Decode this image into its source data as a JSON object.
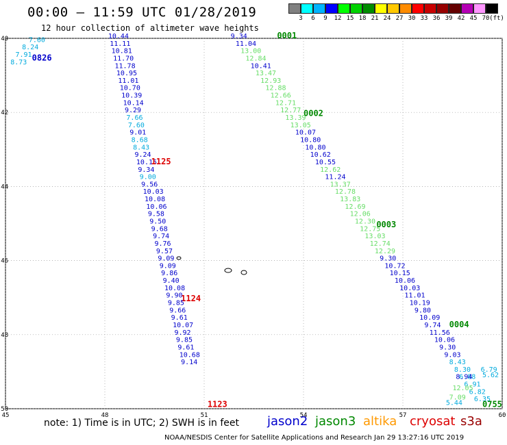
{
  "header": {
    "title": "00:00 – 11:59 UTC 01/28/2019",
    "subtitle": "12 hour collection of altimeter wave heights"
  },
  "colorbar": {
    "unit": "(ft)",
    "colors": [
      "#808080",
      "#00ffff",
      "#00b4ff",
      "#0000ff",
      "#00ff00",
      "#00d200",
      "#008c00",
      "#ffff00",
      "#ffc800",
      "#ff8c00",
      "#ff0000",
      "#c80000",
      "#960000",
      "#640000",
      "#b400b4",
      "#ff96ff",
      "#000000"
    ],
    "labels": [
      "3",
      "6",
      "9",
      "12",
      "15",
      "18",
      "21",
      "24",
      "27",
      "30",
      "33",
      "36",
      "39",
      "42",
      "45",
      "70"
    ]
  },
  "map": {
    "lon_range": [
      45,
      60
    ],
    "lat_range": [
      -50,
      -40
    ],
    "lon_ticks": [
      "45",
      "48",
      "51",
      "54",
      "57",
      "60"
    ],
    "lat_ticks": [
      "-40",
      "-42",
      "-44",
      "-46",
      "-48",
      "-50"
    ]
  },
  "passes": [
    {
      "id": "p1",
      "color": "#00aadd",
      "time": "0826",
      "time_color": "#0000cc",
      "time_pos": [
        45.8,
        -40.6
      ],
      "points": [
        [
          45.7,
          -40.1,
          "7.60",
          "#00aadd"
        ],
        [
          45.5,
          -40.3,
          "8.24",
          "#00aadd"
        ],
        [
          45.3,
          -40.5,
          "7.91",
          "#00aadd"
        ],
        [
          45.15,
          -40.7,
          "8.73",
          "#00aadd"
        ]
      ]
    },
    {
      "id": "p2",
      "time": "1125",
      "time_color": "#dd0000",
      "time_pos": [
        49.4,
        -43.4
      ],
      "points": [
        [
          48.1,
          -40.0,
          "10.44",
          "#0000cc"
        ],
        [
          48.15,
          -40.2,
          "11.11",
          "#0000cc"
        ],
        [
          48.2,
          -40.4,
          "10.81",
          "#0000cc"
        ],
        [
          48.25,
          -40.6,
          "11.70",
          "#0000cc"
        ],
        [
          48.3,
          -40.8,
          "11.78",
          "#0000cc"
        ],
        [
          48.35,
          -41.0,
          "10.95",
          "#0000cc"
        ],
        [
          48.4,
          -41.2,
          "11.01",
          "#0000cc"
        ],
        [
          48.45,
          -41.4,
          "10.70",
          "#0000cc"
        ],
        [
          48.5,
          -41.6,
          "10.39",
          "#0000cc"
        ],
        [
          48.55,
          -41.8,
          "10.14",
          "#0000cc"
        ],
        [
          48.6,
          -42.0,
          "9.29",
          "#0000cc"
        ],
        [
          48.65,
          -42.2,
          "7.66",
          "#00aadd"
        ],
        [
          48.7,
          -42.4,
          "7.60",
          "#00aadd"
        ],
        [
          48.75,
          -42.6,
          "9.01",
          "#0000cc"
        ],
        [
          48.8,
          -42.8,
          "8.68",
          "#00aadd"
        ],
        [
          48.85,
          -43.0,
          "8.43",
          "#00aadd"
        ],
        [
          48.9,
          -43.2,
          "9.24",
          "#0000cc"
        ],
        [
          48.95,
          -43.4,
          "10.15",
          "#0000cc"
        ],
        [
          49.0,
          -43.6,
          "9.34",
          "#0000cc"
        ],
        [
          49.05,
          -43.8,
          "9.00",
          "#00aadd"
        ]
      ]
    },
    {
      "id": "p3",
      "time": "1124",
      "time_color": "#dd0000",
      "time_pos": [
        50.3,
        -47.1
      ],
      "points": [
        [
          49.1,
          -44.0,
          "9.56",
          "#0000cc"
        ],
        [
          49.15,
          -44.2,
          "10.03",
          "#0000cc"
        ],
        [
          49.2,
          -44.4,
          "10.08",
          "#0000cc"
        ],
        [
          49.25,
          -44.6,
          "10.06",
          "#0000cc"
        ],
        [
          49.3,
          -44.8,
          "9.58",
          "#0000cc"
        ],
        [
          49.35,
          -45.0,
          "9.50",
          "#0000cc"
        ],
        [
          49.4,
          -45.2,
          "9.68",
          "#0000cc"
        ],
        [
          49.45,
          -45.4,
          "9.74",
          "#0000cc"
        ],
        [
          49.5,
          -45.6,
          "9.76",
          "#0000cc"
        ],
        [
          49.55,
          -45.8,
          "9.57",
          "#0000cc"
        ],
        [
          49.6,
          -46.0,
          "9.09",
          "#0000cc"
        ],
        [
          49.65,
          -46.2,
          "9.09",
          "#0000cc"
        ],
        [
          49.7,
          -46.4,
          "9.86",
          "#0000cc"
        ],
        [
          49.75,
          -46.6,
          "9.40",
          "#0000cc"
        ],
        [
          49.8,
          -46.8,
          "10.08",
          "#0000cc"
        ],
        [
          49.85,
          -47.0,
          "9.90",
          "#0000cc"
        ]
      ]
    },
    {
      "id": "p4",
      "time": "1123",
      "time_color": "#dd0000",
      "time_pos": [
        51.1,
        -49.95
      ],
      "points": [
        [
          49.9,
          -47.2,
          "9.85",
          "#0000cc"
        ],
        [
          49.95,
          -47.4,
          "9.66",
          "#0000cc"
        ],
        [
          50.0,
          -47.6,
          "9.61",
          "#0000cc"
        ],
        [
          50.05,
          -47.8,
          "10.07",
          "#0000cc"
        ],
        [
          50.1,
          -48.0,
          "9.92",
          "#0000cc"
        ],
        [
          50.15,
          -48.2,
          "9.85",
          "#0000cc"
        ],
        [
          50.2,
          -48.4,
          "9.61",
          "#0000cc"
        ],
        [
          50.25,
          -48.6,
          "10.68",
          "#0000cc"
        ],
        [
          50.3,
          -48.8,
          "9.14",
          "#0000cc"
        ]
      ]
    },
    {
      "id": "p5",
      "time": "0001",
      "time_color": "#008800",
      "time_pos": [
        53.2,
        -40.0
      ],
      "points": [
        [
          51.8,
          -40.0,
          "9.34",
          "#0000cc"
        ],
        [
          51.95,
          -40.2,
          "11.04",
          "#0000cc"
        ],
        [
          52.1,
          -40.4,
          "13.00",
          "#66dd66"
        ],
        [
          52.25,
          -40.6,
          "12.84",
          "#66dd66"
        ],
        [
          52.4,
          -40.8,
          "10.41",
          "#0000cc"
        ],
        [
          52.55,
          -41.0,
          "13.47",
          "#66dd66"
        ],
        [
          52.7,
          -41.2,
          "12.93",
          "#66dd66"
        ],
        [
          52.85,
          -41.4,
          "12.88",
          "#66dd66"
        ],
        [
          53.0,
          -41.6,
          "12.66",
          "#66dd66"
        ],
        [
          53.15,
          -41.8,
          "12.71",
          "#66dd66"
        ],
        [
          53.3,
          -42.0,
          "12.77",
          "#66dd66"
        ],
        [
          53.45,
          -42.2,
          "13.39",
          "#66dd66"
        ],
        [
          53.6,
          -42.4,
          "13.05",
          "#66dd66"
        ],
        [
          53.75,
          -42.6,
          "10.07",
          "#0000cc"
        ],
        [
          53.9,
          -42.8,
          "10.80",
          "#0000cc"
        ],
        [
          54.05,
          -43.0,
          "10.80",
          "#0000cc"
        ],
        [
          54.2,
          -43.2,
          "10.62",
          "#0000cc"
        ],
        [
          54.35,
          -43.4,
          "10.55",
          "#0000cc"
        ],
        [
          54.5,
          -43.6,
          "12.62",
          "#66dd66"
        ],
        [
          54.65,
          -43.8,
          "11.24",
          "#0000cc"
        ],
        [
          54.8,
          -44.0,
          "13.37",
          "#66dd66"
        ],
        [
          54.95,
          -44.2,
          "12.78",
          "#66dd66"
        ],
        [
          55.1,
          -44.4,
          "13.83",
          "#66dd66"
        ],
        [
          55.25,
          -44.6,
          "12.69",
          "#66dd66"
        ],
        [
          55.4,
          -44.8,
          "12.06",
          "#66dd66"
        ],
        [
          55.55,
          -45.0,
          "12.30",
          "#66dd66"
        ],
        [
          55.7,
          -45.2,
          "12.75",
          "#66dd66"
        ],
        [
          55.85,
          -45.4,
          "13.03",
          "#66dd66"
        ],
        [
          56.0,
          -45.6,
          "12.74",
          "#66dd66"
        ],
        [
          56.15,
          -45.8,
          "12.29",
          "#66dd66"
        ],
        [
          56.3,
          -46.0,
          "9.30",
          "#0000cc"
        ],
        [
          56.45,
          -46.2,
          "10.72",
          "#0000cc"
        ],
        [
          56.6,
          -46.4,
          "10.15",
          "#0000cc"
        ],
        [
          56.75,
          -46.6,
          "10.06",
          "#0000cc"
        ],
        [
          56.9,
          -46.8,
          "10.03",
          "#0000cc"
        ],
        [
          57.05,
          -47.0,
          "11.01",
          "#0000cc"
        ],
        [
          57.2,
          -47.2,
          "10.19",
          "#0000cc"
        ],
        [
          57.35,
          -47.4,
          "9.80",
          "#0000cc"
        ],
        [
          57.5,
          -47.6,
          "10.09",
          "#0000cc"
        ],
        [
          57.65,
          -47.8,
          "9.74",
          "#0000cc"
        ],
        [
          57.8,
          -48.0,
          "11.56",
          "#0000cc"
        ],
        [
          57.95,
          -48.2,
          "10.06",
          "#0000cc"
        ],
        [
          58.1,
          -48.4,
          "9.30",
          "#0000cc"
        ],
        [
          58.25,
          -48.6,
          "9.03",
          "#0000cc"
        ],
        [
          58.4,
          -48.8,
          "8.43",
          "#00aadd"
        ],
        [
          58.55,
          -49.0,
          "8.30",
          "#00aadd"
        ],
        [
          58.7,
          -49.2,
          "6.88",
          "#00aadd"
        ],
        [
          58.85,
          -49.4,
          "6.91",
          "#00aadd"
        ],
        [
          59.0,
          -49.6,
          "6.82",
          "#00aadd"
        ],
        [
          59.15,
          -49.8,
          "6.35",
          "#00aadd"
        ]
      ]
    }
  ],
  "extra_labels": [
    {
      "text": "0002",
      "pos": [
        54.0,
        -42.1
      ],
      "color": "#008800"
    },
    {
      "text": "0003",
      "pos": [
        56.2,
        -45.1
      ],
      "color": "#008800"
    },
    {
      "text": "0004",
      "pos": [
        58.4,
        -47.8
      ],
      "color": "#008800"
    },
    {
      "text": "0755",
      "pos": [
        59.4,
        -49.95
      ],
      "color": "#008800"
    },
    {
      "text": "12.05",
      "pos": [
        58.5,
        -49.5
      ],
      "color": "#66dd66"
    },
    {
      "text": "8.94",
      "pos": [
        58.6,
        -49.2
      ],
      "color": "#0000cc"
    },
    {
      "text": "7.09",
      "pos": [
        58.4,
        -49.75
      ],
      "color": "#66dd66"
    },
    {
      "text": "5.44",
      "pos": [
        58.3,
        -49.9
      ],
      "color": "#00aadd"
    },
    {
      "text": "6.79",
      "pos": [
        59.35,
        -49.0
      ],
      "color": "#00aadd"
    },
    {
      "text": "5.62",
      "pos": [
        59.4,
        -49.15
      ],
      "color": "#00aadd"
    }
  ],
  "footer": {
    "note": "note: 1) Time is in UTC; 2) SWH is in feet",
    "legend": [
      {
        "label": "jason2",
        "color": "#0000cc"
      },
      {
        "label": "jason3",
        "color": "#008800"
      },
      {
        "label": "altika",
        "color": "#ff9900"
      },
      {
        "label": "cryosat",
        "color": "#dd0000"
      },
      {
        "label": "s3a",
        "color": "#990000"
      }
    ],
    "credit": "NOAA/NESDIS Center for Satellite Applications and Research    Jan 29 13:27:16 UTC 2019"
  }
}
